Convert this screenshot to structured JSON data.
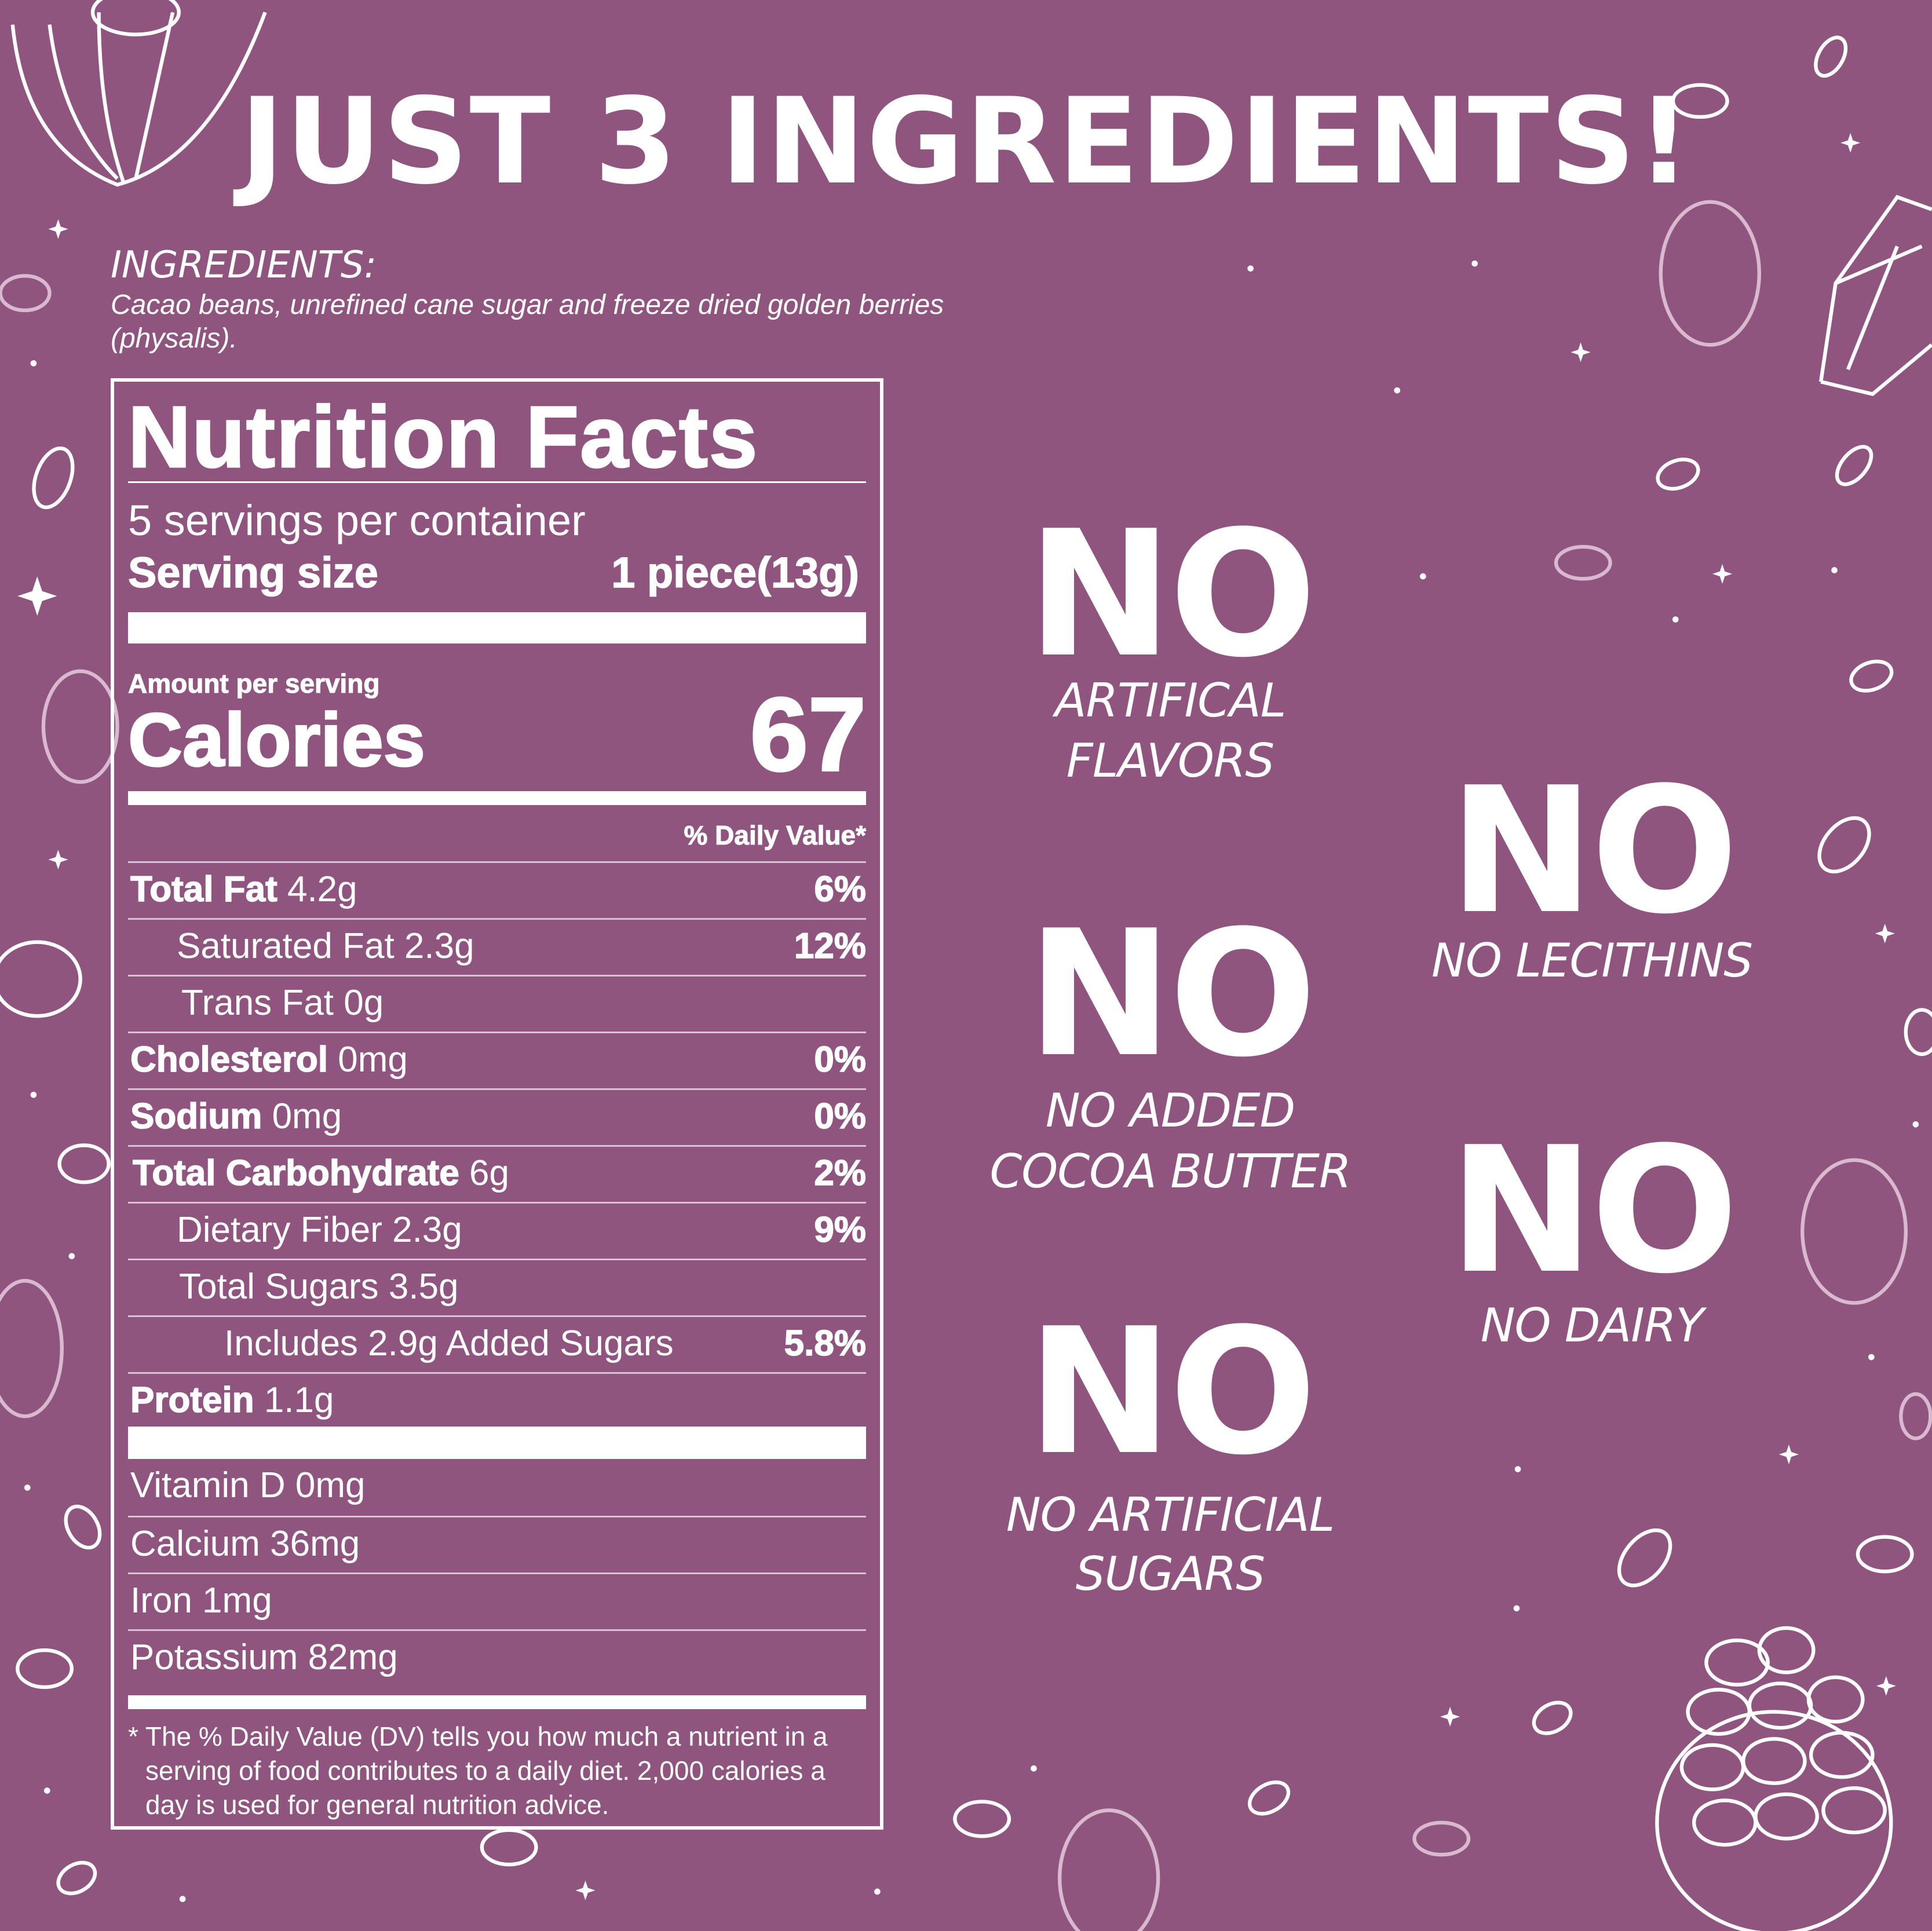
{
  "title": "JUST 3 INGREDIENTS!",
  "background_color": "#8f557f",
  "ingredients": {
    "label": "INGREDIENTS:",
    "text": "Cacao beans, unrefined cane sugar and freeze dried golden berries (physalis)."
  },
  "nutrition": {
    "title": "Nutrition Facts",
    "servings_per_container": "5 servings per container",
    "serving_size_label": "Serving size",
    "serving_size_value": "1 piece(13g)",
    "amount_per_serving": "Amount per serving",
    "calories_label": "Calories",
    "calories_value": "67",
    "daily_value_header": "% Daily Value*",
    "rows": [
      {
        "name": "Total Fat",
        "amount": "4.2g",
        "dv": "6%"
      },
      {
        "name": "Saturated Fat 2.3g",
        "amount": "",
        "dv": "12%"
      },
      {
        "name": "Trans Fat 0g",
        "amount": "",
        "dv": ""
      },
      {
        "name": "Cholesterol",
        "amount": "0mg",
        "dv": "0%"
      },
      {
        "name": "Sodium",
        "amount": "0mg",
        "dv": "0%"
      },
      {
        "name": "Total Carbohydrate",
        "amount": "6g",
        "dv": "2%"
      },
      {
        "name": "Dietary Fiber 2.3g",
        "amount": "",
        "dv": "9%"
      },
      {
        "name": "Total Sugars 3.5g",
        "amount": "",
        "dv": ""
      },
      {
        "name": "Includes 2.9g Added Sugars",
        "amount": "",
        "dv": "5.8%"
      },
      {
        "name": "Protein",
        "amount": "1.1g",
        "dv": ""
      }
    ],
    "minerals": [
      "Vitamin D 0mg",
      "Calcium 36mg",
      "Iron 1mg",
      "Potassium 82mg"
    ],
    "footnote": "* The % Daily Value (DV) tells you how much a nutrient in a serving of food contributes to a daily diet. 2,000 calories a day is used for general nutrition advice."
  },
  "claims": [
    {
      "big": "NO",
      "line1": "ARTIFICAL",
      "line2": "FLAVORS"
    },
    {
      "big": "NO",
      "line1": "NO LECITHINS",
      "line2": ""
    },
    {
      "big": "NO",
      "line1": "NO ADDED",
      "line2": "COCOA BUTTER"
    },
    {
      "big": "NO",
      "line1": "NO DAIRY",
      "line2": ""
    },
    {
      "big": "NO",
      "line1": "NO ARTIFICIAL",
      "line2": "SUGARS"
    }
  ]
}
